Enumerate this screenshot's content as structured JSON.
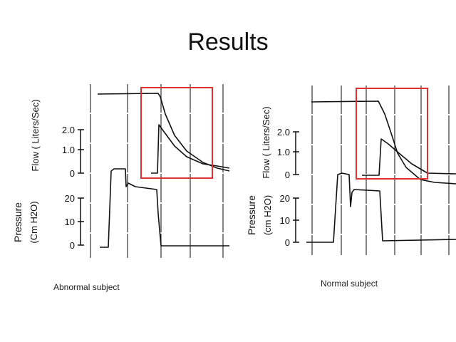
{
  "slide": {
    "title": "Results"
  },
  "chart_data": [
    {
      "type": "line",
      "caption": "Abnormal subject",
      "panels": [
        {
          "ylabel": "Flow ( Liters/Sec)",
          "ticks": [
            "2.0",
            "1.0",
            "0"
          ],
          "ylim": [
            0,
            2.0
          ]
        },
        {
          "ylabel": "Pressure",
          "ylabel2": "(Cm H2O)",
          "ticks": [
            "20",
            "10",
            "0"
          ],
          "ylim": [
            0,
            20
          ]
        }
      ],
      "highlight_color": "#e03030"
    },
    {
      "type": "line",
      "caption": "Normal subject",
      "panels": [
        {
          "ylabel": "Flow ( Liters/Sec)",
          "ticks": [
            "2.0",
            "1.0",
            "0"
          ],
          "ylim": [
            0,
            2.0
          ]
        },
        {
          "ylabel": "Pressure",
          "ylabel2": "(cm H2O)",
          "ticks": [
            "20",
            "10",
            "0"
          ],
          "ylim": [
            0,
            20
          ]
        }
      ],
      "highlight_color": "#e03030"
    }
  ]
}
